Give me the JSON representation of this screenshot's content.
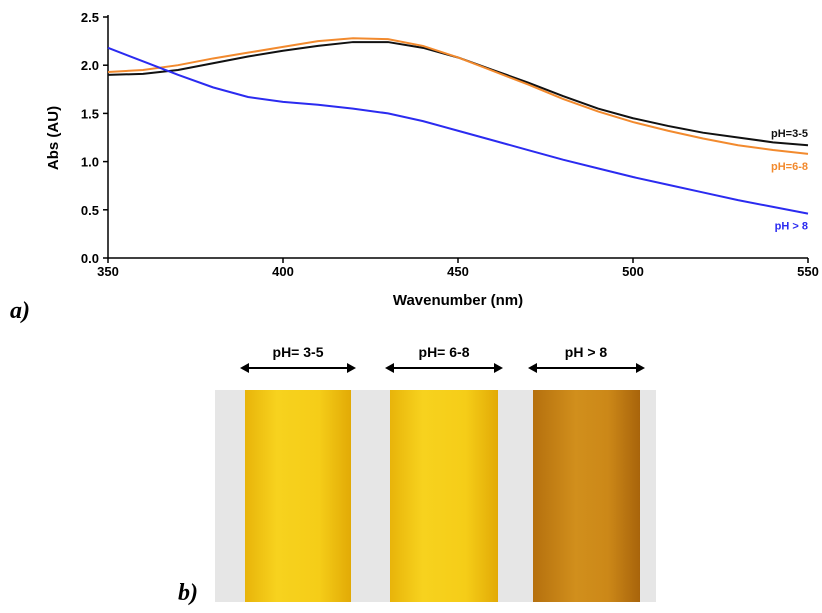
{
  "chart_data": {
    "type": "line",
    "panel_label": "a)",
    "x_label": "Wavenumber (nm)",
    "y_label": "Abs (AU)",
    "x": [
      350,
      360,
      370,
      380,
      390,
      400,
      410,
      420,
      430,
      440,
      450,
      460,
      470,
      480,
      490,
      500,
      510,
      520,
      530,
      540,
      550
    ],
    "series": [
      {
        "name": "pH=3-5",
        "color": "#111111",
        "values": [
          1.9,
          1.91,
          1.95,
          2.02,
          2.09,
          2.15,
          2.2,
          2.24,
          2.24,
          2.18,
          2.08,
          1.95,
          1.82,
          1.68,
          1.55,
          1.45,
          1.37,
          1.3,
          1.25,
          1.2,
          1.17
        ]
      },
      {
        "name": "pH=6-8",
        "color": "#f28a2e",
        "values": [
          1.93,
          1.95,
          2.0,
          2.07,
          2.13,
          2.19,
          2.25,
          2.28,
          2.27,
          2.2,
          2.08,
          1.94,
          1.8,
          1.65,
          1.52,
          1.41,
          1.32,
          1.24,
          1.17,
          1.12,
          1.08
        ]
      },
      {
        "name": "pH > 8",
        "color": "#2b2bf0",
        "values": [
          2.18,
          2.04,
          1.9,
          1.77,
          1.67,
          1.62,
          1.59,
          1.55,
          1.5,
          1.42,
          1.32,
          1.22,
          1.12,
          1.02,
          0.93,
          0.84,
          0.76,
          0.68,
          0.6,
          0.53,
          0.46
        ]
      }
    ],
    "xlim": [
      350,
      550
    ],
    "xticks": [
      350,
      400,
      450,
      500,
      550
    ],
    "ylim": [
      0,
      2.5
    ],
    "yticks": [
      {
        "value": 0,
        "label": "0.0"
      },
      0.5,
      {
        "value": 1,
        "label": "1.0"
      },
      1.5,
      {
        "value": 2,
        "label": "2.0"
      },
      2.5
    ]
  },
  "photo": {
    "panel_label": "b)",
    "labels": [
      "pH= 3-5",
      "pH= 6-8",
      "pH > 8"
    ]
  }
}
